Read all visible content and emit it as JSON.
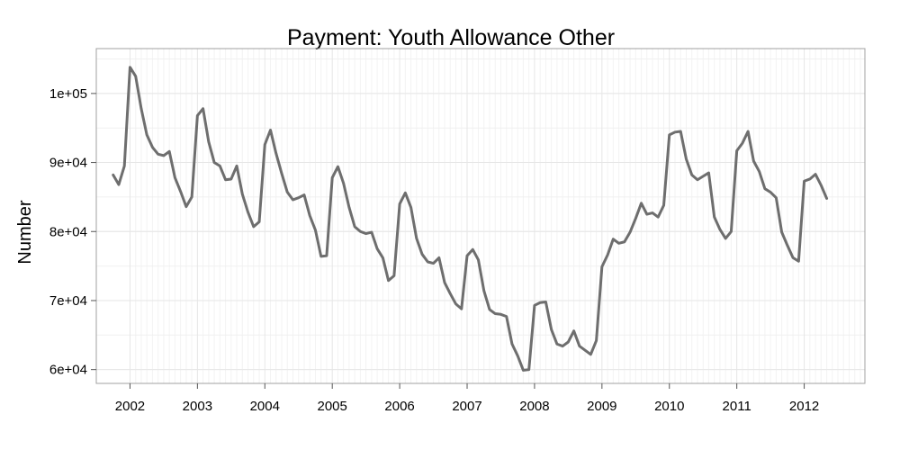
{
  "chart_data": {
    "type": "line",
    "title": "Payment: Youth Allowance Other",
    "xlabel": "",
    "ylabel": "Number",
    "x_start": "2001-10",
    "x_interval": "month",
    "x_ticks": [
      "2002",
      "2003",
      "2004",
      "2005",
      "2006",
      "2007",
      "2008",
      "2009",
      "2010",
      "2011",
      "2012"
    ],
    "y_ticks": [
      "6e+04",
      "7e+04",
      "8e+04",
      "9e+04",
      "1e+05"
    ],
    "xlim": [
      2001.5,
      2012.9
    ],
    "ylim": [
      58000,
      106500
    ],
    "grid": true,
    "line_color": "#6e6e6e",
    "series": [
      {
        "values": [
          88200,
          86800,
          89500,
          103800,
          102500,
          97800,
          94000,
          92200,
          91200,
          91000,
          91600,
          87800,
          85800,
          83600,
          85000,
          96800,
          97800,
          93000,
          90000,
          89500,
          87500,
          87600,
          89500,
          85400,
          82800,
          80700,
          81400,
          92600,
          94700,
          91300,
          88400,
          85700,
          84600,
          84900,
          85300,
          82300,
          80200,
          76400,
          76500,
          87800,
          89400,
          87000,
          83500,
          80700,
          80000,
          79700,
          79900,
          77500,
          76200,
          72900,
          73600,
          84000,
          85600,
          83500,
          79000,
          76700,
          75600,
          75400,
          76200,
          72600,
          71000,
          69500,
          68800,
          76500,
          77400,
          75900,
          71400,
          68700,
          68100,
          68000,
          67700,
          63700,
          62000,
          59900,
          60000,
          69300,
          69700,
          69800,
          65800,
          63700,
          63400,
          64000,
          65600,
          63400,
          62800,
          62200,
          64200,
          74900,
          76600,
          78900,
          78300,
          78500,
          79900,
          81900,
          84100,
          82500,
          82700,
          82100,
          83800,
          94000,
          94400,
          94500,
          90500,
          88200,
          87500,
          88000,
          88500,
          82100,
          80300,
          79000,
          80000,
          91700,
          92800,
          94500,
          90200,
          88700,
          86200,
          85700,
          84900,
          79900,
          78000,
          76200,
          75700,
          87300,
          87600,
          88300,
          86700,
          84800
        ]
      }
    ]
  }
}
